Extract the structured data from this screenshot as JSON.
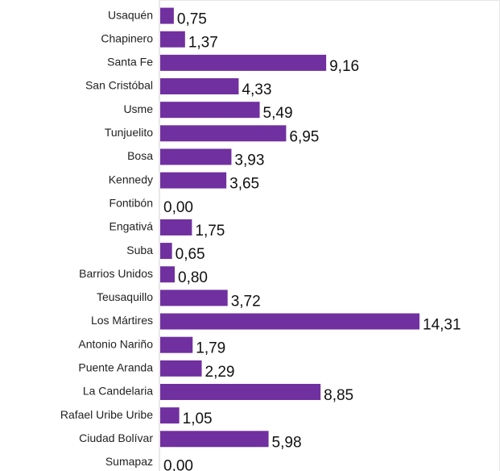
{
  "chart_data": {
    "type": "bar",
    "orientation": "horizontal",
    "color": "#7030a0",
    "categories": [
      "Usaquén",
      "Chapinero",
      "Santa Fe",
      "San Cristóbal",
      "Usme",
      "Tunjuelito",
      "Bosa",
      "Kennedy",
      "Fontibón",
      "Engativá",
      "Suba",
      "Barrios Unidos",
      "Teusaquillo",
      "Los Mártires",
      "Antonio Nariño",
      "Puente Aranda",
      "La Candelaria",
      "Rafael Uribe Uribe",
      "Ciudad Bolívar",
      "Sumapaz"
    ],
    "values": [
      0.75,
      1.37,
      9.16,
      4.33,
      5.49,
      6.95,
      3.93,
      3.65,
      0,
      1.75,
      0.65,
      0.8,
      3.72,
      14.31,
      1.79,
      2.29,
      8.85,
      1.05,
      5.98,
      0
    ],
    "value_labels": [
      "0,75",
      "1,37",
      "9,16",
      "4,33",
      "5,49",
      "6,95",
      "3,93",
      "3,65",
      "0,00",
      "1,75",
      "0,65",
      "0,80",
      "3,72",
      "14,31",
      "1,79",
      "2,29",
      "8,85",
      "1,05",
      "5,98",
      "0,00"
    ]
  }
}
